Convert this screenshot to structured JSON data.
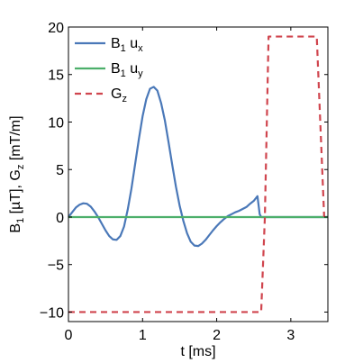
{
  "chart_data": {
    "type": "line",
    "xlabel": "t [ms]",
    "ylabel": "B1 [µT], Gz [mT/m]",
    "xlim": [
      0,
      3.5
    ],
    "ylim": [
      -11,
      20
    ],
    "xticks": [
      0,
      1,
      2,
      3
    ],
    "yticks": [
      -10,
      -5,
      0,
      5,
      10,
      15,
      20
    ],
    "xtick_labels": [
      "0",
      "1",
      "2",
      "3"
    ],
    "ytick_labels": [
      "−10",
      "−5",
      "0",
      "5",
      "10",
      "15",
      "20"
    ],
    "grid": false,
    "legend_position": "top-left",
    "series": [
      {
        "name": "B1 ux",
        "name_main": "B",
        "name_sub1": "1",
        "name_mid": " u",
        "name_sub2": "x",
        "color": "#4a78b8",
        "style": "solid",
        "x": [
          0,
          0.05,
          0.1,
          0.15,
          0.2,
          0.25,
          0.3,
          0.35,
          0.4,
          0.45,
          0.5,
          0.55,
          0.6,
          0.65,
          0.7,
          0.75,
          0.8,
          0.85,
          0.9,
          0.95,
          1.0,
          1.05,
          1.1,
          1.15,
          1.2,
          1.25,
          1.3,
          1.35,
          1.4,
          1.45,
          1.5,
          1.55,
          1.6,
          1.65,
          1.7,
          1.75,
          1.8,
          1.85,
          1.9,
          1.95,
          2.0,
          2.05,
          2.1,
          2.15,
          2.2,
          2.25,
          2.3,
          2.35,
          2.4,
          2.45,
          2.5,
          2.55,
          2.58,
          2.6,
          2.62,
          2.65,
          2.7,
          2.8,
          3.0,
          3.2,
          3.4,
          3.5
        ],
        "y": [
          0,
          0.5,
          1.0,
          1.3,
          1.45,
          1.4,
          1.1,
          0.6,
          0,
          -0.7,
          -1.4,
          -2.0,
          -2.35,
          -2.4,
          -2.0,
          -1.0,
          0.8,
          3.0,
          5.6,
          8.2,
          10.6,
          12.4,
          13.5,
          13.7,
          13.3,
          12.0,
          10.2,
          7.9,
          5.5,
          3.2,
          1.2,
          -0.4,
          -1.7,
          -2.6,
          -3.0,
          -3.05,
          -2.8,
          -2.4,
          -1.9,
          -1.4,
          -0.95,
          -0.55,
          -0.2,
          0.1,
          0.3,
          0.5,
          0.65,
          0.85,
          1.05,
          1.4,
          1.7,
          2.2,
          0.3,
          0,
          0,
          0,
          0,
          0,
          0,
          0,
          0,
          0
        ]
      },
      {
        "name": "B1 uy",
        "name_main": "B",
        "name_sub1": "1",
        "name_mid": " u",
        "name_sub2": "y",
        "color": "#4caf6a",
        "style": "solid",
        "x": [
          0,
          3.5
        ],
        "y": [
          0,
          0
        ]
      },
      {
        "name": "Gz",
        "name_main": "G",
        "name_sub1": "z",
        "name_mid": "",
        "name_sub2": "",
        "color": "#d0454e",
        "style": "dashed",
        "x": [
          0,
          2.55,
          2.6,
          2.65,
          2.7,
          3.35,
          3.45
        ],
        "y": [
          -10,
          -10,
          -10,
          0,
          19,
          19,
          0
        ]
      }
    ]
  }
}
